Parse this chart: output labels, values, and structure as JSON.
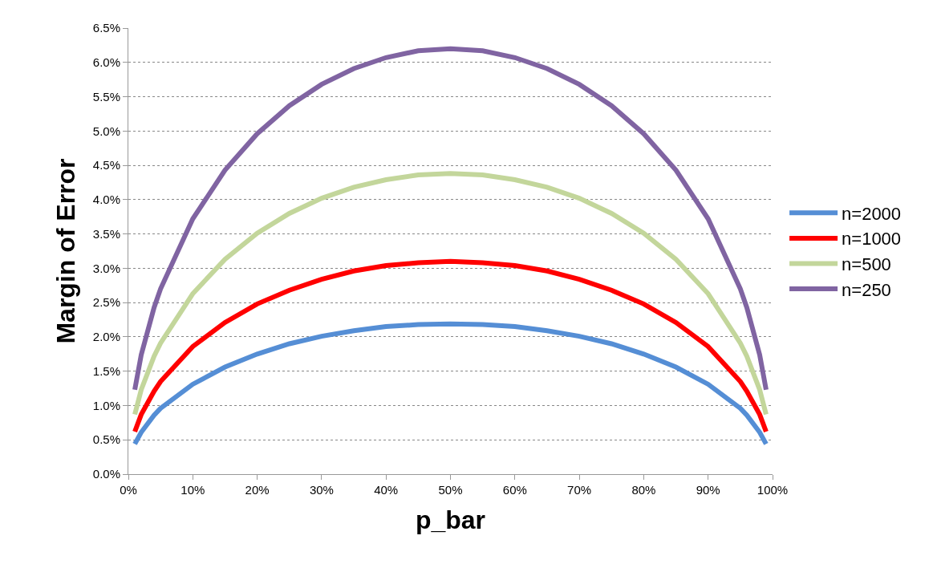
{
  "chart_data": {
    "type": "line",
    "xlabel": "p_bar",
    "ylabel": "Margin of Error",
    "x": [
      1,
      2,
      4,
      5,
      10,
      15,
      20,
      25,
      30,
      35,
      40,
      45,
      50,
      55,
      60,
      65,
      70,
      75,
      80,
      85,
      90,
      95,
      96,
      98,
      99
    ],
    "series": [
      {
        "name": "n=2000",
        "color": "#558ed5",
        "values": [
          0.44,
          0.61,
          0.86,
          0.96,
          1.31,
          1.56,
          1.75,
          1.9,
          2.01,
          2.09,
          2.15,
          2.18,
          2.19,
          2.18,
          2.15,
          2.09,
          2.01,
          1.9,
          1.75,
          1.56,
          1.31,
          0.96,
          0.86,
          0.61,
          0.44
        ]
      },
      {
        "name": "n=1000",
        "color": "#ff0000",
        "values": [
          0.62,
          0.87,
          1.21,
          1.35,
          1.86,
          2.21,
          2.48,
          2.68,
          2.84,
          2.96,
          3.04,
          3.08,
          3.1,
          3.08,
          3.04,
          2.96,
          2.84,
          2.68,
          2.48,
          2.21,
          1.86,
          1.35,
          1.21,
          0.87,
          0.62
        ]
      },
      {
        "name": "n=500",
        "color": "#c3d69b",
        "values": [
          0.87,
          1.23,
          1.72,
          1.91,
          2.63,
          3.13,
          3.51,
          3.8,
          4.02,
          4.18,
          4.29,
          4.36,
          4.38,
          4.36,
          4.29,
          4.18,
          4.02,
          3.8,
          3.51,
          3.13,
          2.63,
          1.91,
          1.72,
          1.23,
          0.87
        ]
      },
      {
        "name": "n=250",
        "color": "#8064a2",
        "values": [
          1.23,
          1.74,
          2.43,
          2.7,
          3.72,
          4.43,
          4.96,
          5.37,
          5.68,
          5.91,
          6.07,
          6.17,
          6.2,
          6.17,
          6.07,
          5.91,
          5.68,
          5.37,
          4.96,
          4.43,
          3.72,
          2.7,
          2.43,
          1.74,
          1.23
        ]
      }
    ],
    "xlim": [
      0,
      100
    ],
    "xticks": [
      {
        "value": 0,
        "label": "0%"
      },
      {
        "value": 10,
        "label": "10%"
      },
      {
        "value": 20,
        "label": "20%"
      },
      {
        "value": 30,
        "label": "30%"
      },
      {
        "value": 40,
        "label": "40%"
      },
      {
        "value": 50,
        "label": "50%"
      },
      {
        "value": 60,
        "label": "60%"
      },
      {
        "value": 70,
        "label": "70%"
      },
      {
        "value": 80,
        "label": "80%"
      },
      {
        "value": 90,
        "label": "90%"
      },
      {
        "value": 100,
        "label": "100%"
      }
    ],
    "ylim": [
      0,
      6.5
    ],
    "yticks": [
      {
        "value": 0,
        "label": "0.0%"
      },
      {
        "value": 0.5,
        "label": "0.5%"
      },
      {
        "value": 1,
        "label": "1.0%"
      },
      {
        "value": 1.5,
        "label": "1.5%"
      },
      {
        "value": 2,
        "label": "2.0%"
      },
      {
        "value": 2.5,
        "label": "2.5%"
      },
      {
        "value": 3,
        "label": "3.0%"
      },
      {
        "value": 3.5,
        "label": "3.5%"
      },
      {
        "value": 4,
        "label": "4.0%"
      },
      {
        "value": 4.5,
        "label": "4.5%"
      },
      {
        "value": 5,
        "label": "5.0%"
      },
      {
        "value": 5.5,
        "label": "5.5%"
      },
      {
        "value": 6,
        "label": "6.0%"
      },
      {
        "value": 6.5,
        "label": "6.5%"
      }
    ],
    "grid": "y",
    "legend": "right",
    "marker": "none",
    "line_style": "solid"
  }
}
